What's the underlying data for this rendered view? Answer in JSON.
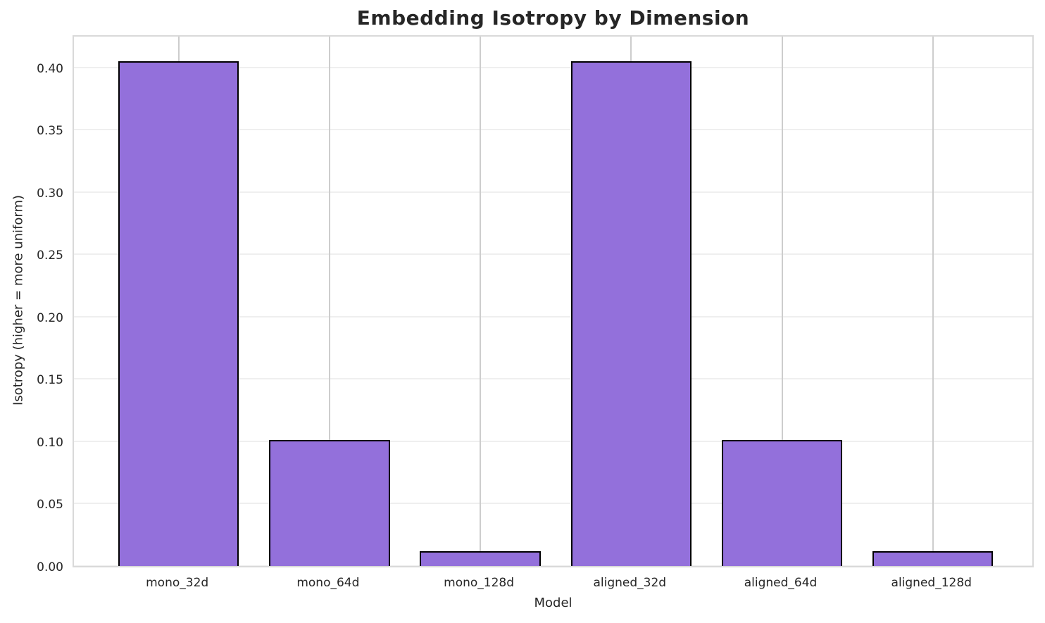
{
  "chart_data": {
    "type": "bar",
    "title": "Embedding Isotropy by Dimension",
    "xlabel": "Model",
    "ylabel": "Isotropy (higher = more uniform)",
    "categories": [
      "mono_32d",
      "mono_64d",
      "mono_128d",
      "aligned_32d",
      "aligned_64d",
      "aligned_128d"
    ],
    "values": [
      0.405,
      0.101,
      0.012,
      0.405,
      0.101,
      0.012
    ],
    "ytick_labels": [
      "0.00",
      "0.05",
      "0.10",
      "0.15",
      "0.20",
      "0.25",
      "0.30",
      "0.35",
      "0.40"
    ],
    "yticks": [
      0.0,
      0.05,
      0.1,
      0.15,
      0.2,
      0.25,
      0.3,
      0.35,
      0.4
    ],
    "ylim": [
      0,
      0.427
    ],
    "grid": true,
    "legend": "none",
    "colors": {
      "bar_fill": "#9370DB",
      "bar_edge": "#000000",
      "grid_horizontal": "#efefef",
      "grid_vertical": "#cdcdcd",
      "spine": "#d9d9d9",
      "text": "#262626"
    }
  }
}
